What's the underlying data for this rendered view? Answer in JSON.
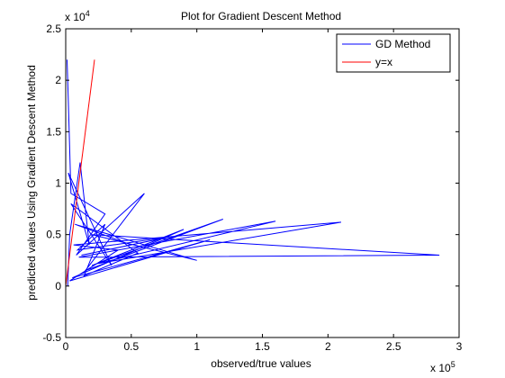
{
  "chart_data": {
    "type": "line",
    "title": "Plot for Gradient Descent Method",
    "xlabel": "observed/true values",
    "ylabel": "predicted values Using Gradient Descent Method",
    "x_multiplier": "x 10",
    "x_multiplier_exp": "5",
    "y_multiplier": "x 10",
    "y_multiplier_exp": "4",
    "xlim": [
      0,
      300000
    ],
    "ylim": [
      -5000,
      25000
    ],
    "x_tick_values": [
      0,
      50000,
      100000,
      150000,
      200000,
      250000,
      300000
    ],
    "x_tick_labels": [
      "0",
      "0.5",
      "1",
      "1.5",
      "2",
      "2.5",
      "3"
    ],
    "y_tick_values": [
      -5000,
      0,
      5000,
      10000,
      15000,
      20000,
      25000
    ],
    "y_tick_labels": [
      "-0.5",
      "0",
      "0.5",
      "1",
      "1.5",
      "2",
      "2.5"
    ],
    "grid": false,
    "legend_position": "top-right",
    "series": [
      {
        "name": "GD Method",
        "color": "#0000ff",
        "x": [
          1000,
          2000,
          4000,
          30000,
          8000,
          60000,
          15000,
          120000,
          20000,
          90000,
          5000,
          110000,
          3000,
          40000,
          6000,
          210000,
          25000,
          160000,
          10000,
          285000,
          20000,
          100000,
          7000,
          50000,
          12000,
          80000,
          9000,
          30000,
          14000,
          55000,
          4000,
          35000,
          2000,
          18000,
          11000,
          3000,
          1500
        ],
        "y": [
          22000,
          18000,
          9000,
          7000,
          3000,
          9000,
          1500,
          6500,
          2000,
          5500,
          800,
          4500,
          500,
          3500,
          4000,
          6200,
          2200,
          6300,
          2800,
          3000,
          5000,
          2500,
          6000,
          4000,
          3000,
          4800,
          3500,
          6000,
          1000,
          3200,
          8000,
          2000,
          11000,
          4000,
          12000,
          5000,
          0
        ]
      },
      {
        "name": "y=x",
        "color": "#ff0000",
        "x": [
          0,
          22000
        ],
        "y": [
          0,
          22000
        ]
      }
    ]
  }
}
